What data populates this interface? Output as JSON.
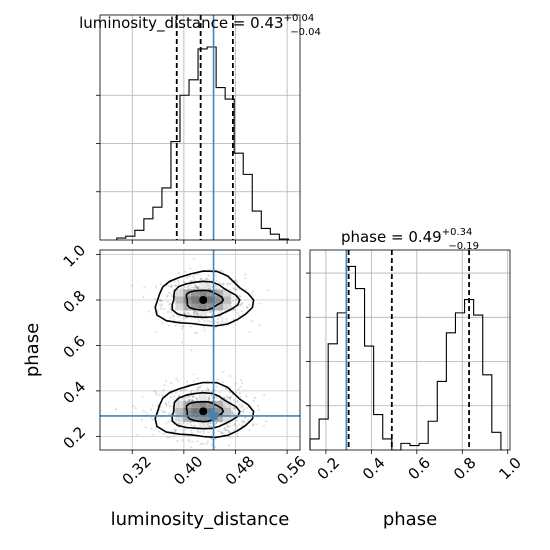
{
  "chart_data": [
    {
      "type": "histogram",
      "panel": "luminosity_distance marginal",
      "title_main": "luminosity_distance = 0.43",
      "title_sup": "+0.04",
      "title_sub": "−0.04",
      "xlim": [
        0.27,
        0.58
      ],
      "bin_edges": [
        0.296,
        0.31,
        0.324,
        0.338,
        0.352,
        0.366,
        0.38,
        0.394,
        0.408,
        0.422,
        0.436,
        0.45,
        0.464,
        0.478,
        0.492,
        0.506,
        0.52,
        0.534,
        0.548,
        0.562
      ],
      "counts": [
        0.01,
        0.02,
        0.05,
        0.11,
        0.17,
        0.27,
        0.51,
        0.75,
        0.83,
        0.99,
        1.0,
        0.79,
        0.73,
        0.45,
        0.34,
        0.15,
        0.06,
        0.03,
        0.005
      ],
      "quantile_lines": [
        0.389,
        0.426,
        0.476
      ],
      "truth": 0.446,
      "grid": true
    },
    {
      "type": "histogram",
      "panel": "phase marginal",
      "title_main": "phase = 0.49",
      "title_sup": "+0.34",
      "title_sub": "−0.19",
      "xlim": [
        0.13,
        1.01
      ],
      "bin_edges": [
        0.13,
        0.17,
        0.21,
        0.25,
        0.29,
        0.33,
        0.37,
        0.41,
        0.45,
        0.49,
        0.53,
        0.57,
        0.61,
        0.65,
        0.69,
        0.73,
        0.77,
        0.81,
        0.85,
        0.89,
        0.93,
        0.97
      ],
      "counts": [
        0.05,
        0.14,
        0.48,
        0.62,
        0.83,
        0.73,
        0.47,
        0.16,
        0.05,
        0.0,
        0.03,
        0.02,
        0.03,
        0.13,
        0.31,
        0.53,
        0.62,
        0.68,
        0.61,
        0.34,
        0.08
      ],
      "quantile_lines": [
        0.3,
        0.49,
        0.83
      ],
      "truth": 0.29,
      "grid": true,
      "xticks": [
        "0.2",
        "0.4",
        "0.6",
        "0.8",
        "1.0"
      ],
      "xlabel": "phase"
    },
    {
      "type": "scatter",
      "panel": "2D luminosity_distance vs phase",
      "xlabel": "luminosity_distance",
      "ylabel": "phase",
      "xticks": [
        "0.32",
        "0.40",
        "0.48",
        "0.56"
      ],
      "yticks": [
        "0.2",
        "0.4",
        "0.6",
        "0.8",
        "1.0"
      ],
      "xlim": [
        0.27,
        0.58
      ],
      "ylim": [
        0.14,
        1.02
      ],
      "clusters": [
        {
          "cx": 0.43,
          "cy": 0.8,
          "sx": 0.032,
          "sy": 0.055
        },
        {
          "cx": 0.43,
          "cy": 0.31,
          "sx": 0.036,
          "sy": 0.06
        }
      ],
      "truth": [
        0.446,
        0.29
      ],
      "grid": true
    }
  ]
}
